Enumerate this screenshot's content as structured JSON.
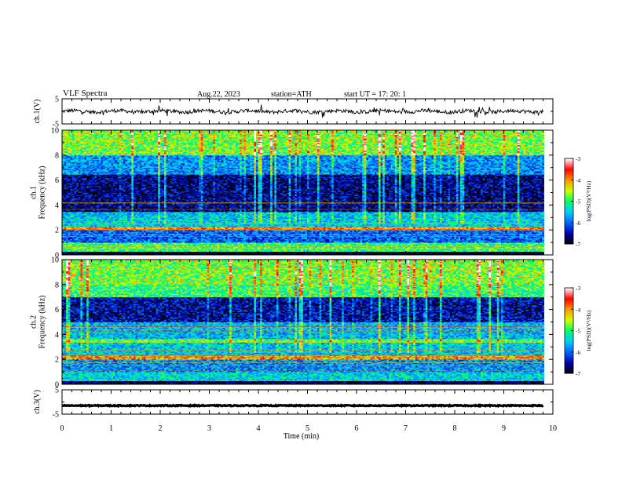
{
  "header": {
    "title": "VLF  Spectra",
    "date": "Aug.22, 2023",
    "station": "station=ATH",
    "start": "start  UT  =    17: 20: 1"
  },
  "chart_data": [
    {
      "type": "line",
      "panel": "ch1-waveform",
      "ylabel": "ch.1(V)",
      "ylim": [
        -5,
        5
      ],
      "yticks": [
        "5",
        "-5"
      ],
      "x_range_min": [
        0,
        9.8
      ],
      "approx_mean": 0,
      "approx_amplitude": 1.5
    },
    {
      "type": "heatmap",
      "panel": "ch1-spectrogram",
      "ylabel": "ch.1\nFrequency  (kHz)",
      "ylim": [
        0,
        10
      ],
      "yticks": [
        "0",
        "2",
        "4",
        "6",
        "8",
        "10"
      ],
      "colorbar": {
        "label": "log(PSD)(V²/Hz)",
        "range": [
          -7,
          -3
        ],
        "ticks": [
          "-3",
          "-4",
          "-5",
          "-6",
          "-7"
        ]
      },
      "bands_khz": [
        {
          "from": 0,
          "to": 0.3,
          "level": -7
        },
        {
          "from": 0.3,
          "to": 1.0,
          "level": -5
        },
        {
          "from": 1.0,
          "to": 2.0,
          "level": -6
        },
        {
          "from": 2.0,
          "to": 2.3,
          "level": -4
        },
        {
          "from": 2.3,
          "to": 3.5,
          "level": -5.5
        },
        {
          "from": 3.5,
          "to": 6.5,
          "level": -6.6
        },
        {
          "from": 6.5,
          "to": 8.0,
          "level": -5.8
        },
        {
          "from": 8.0,
          "to": 10,
          "level": -5
        }
      ]
    },
    {
      "type": "heatmap",
      "panel": "ch2-spectrogram",
      "ylabel": "ch.2\nFrequency  (kHz)",
      "ylim": [
        0,
        10
      ],
      "yticks": [
        "0",
        "2",
        "4",
        "6",
        "8",
        "10"
      ],
      "colorbar": {
        "label": "log(PSD)(V²/Hz)",
        "range": [
          -7,
          -3
        ],
        "ticks": [
          "-3",
          "-4",
          "-5",
          "-6",
          "-7"
        ]
      },
      "bands_khz": [
        {
          "from": 0,
          "to": 0.3,
          "level": -6.8
        },
        {
          "from": 0.3,
          "to": 1.0,
          "level": -5.4
        },
        {
          "from": 1.0,
          "to": 2.0,
          "level": -5.8
        },
        {
          "from": 2.0,
          "to": 2.3,
          "level": -4
        },
        {
          "from": 2.3,
          "to": 3.4,
          "level": -5.5
        },
        {
          "from": 3.4,
          "to": 3.6,
          "level": -4.8
        },
        {
          "from": 3.6,
          "to": 5.0,
          "level": -5.6
        },
        {
          "from": 5.0,
          "to": 7.0,
          "level": -6.5
        },
        {
          "from": 7.0,
          "to": 10,
          "level": -5
        }
      ]
    },
    {
      "type": "line",
      "panel": "ch3-waveform",
      "ylabel": "ch.3(V)",
      "ylim": [
        -5,
        5
      ],
      "yticks": [
        "5",
        "-5"
      ],
      "x_range_min": [
        0,
        9.8
      ],
      "approx_value": -1.5
    }
  ],
  "xaxis": {
    "label": "Time  (min)",
    "range": [
      0,
      10
    ],
    "ticks": [
      "0",
      "1",
      "2",
      "3",
      "4",
      "5",
      "6",
      "7",
      "8",
      "9",
      "10"
    ]
  },
  "colors": {
    "colormap": [
      "#000000",
      "#0000aa",
      "#0066ff",
      "#00ccff",
      "#00ff66",
      "#ccff00",
      "#ff9900",
      "#ff0000",
      "#ffffff"
    ]
  }
}
